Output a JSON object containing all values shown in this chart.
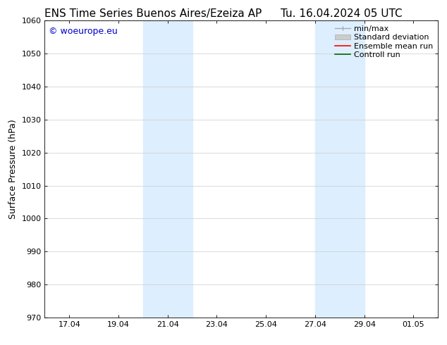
{
  "title_left": "ENS Time Series Buenos Aires/Ezeiza AP",
  "title_right": "Tu. 16.04.2024 05 UTC",
  "ylabel": "Surface Pressure (hPa)",
  "ylim": [
    970,
    1060
  ],
  "yticks": [
    970,
    980,
    990,
    1000,
    1010,
    1020,
    1030,
    1040,
    1050,
    1060
  ],
  "xtick_positions": [
    17,
    19,
    21,
    23,
    25,
    27,
    29,
    31
  ],
  "xtick_labels": [
    "17.04",
    "19.04",
    "21.04",
    "23.04",
    "25.04",
    "27.04",
    "29.04",
    "01.05"
  ],
  "xlim": [
    16.0,
    32.0
  ],
  "shaded_bands": [
    {
      "x_start": 20.0,
      "x_end": 22.0
    },
    {
      "x_start": 27.0,
      "x_end": 29.0
    }
  ],
  "shaded_color": "#ddeeff",
  "copyright_text": "© woeurope.eu",
  "copyright_color": "#0000cc",
  "background_color": "#ffffff",
  "grid_color": "#cccccc",
  "spine_color": "#000000",
  "tick_fontsize": 8,
  "ylabel_fontsize": 9,
  "title_fontsize": 11,
  "copyright_fontsize": 9,
  "legend_fontsize": 8
}
